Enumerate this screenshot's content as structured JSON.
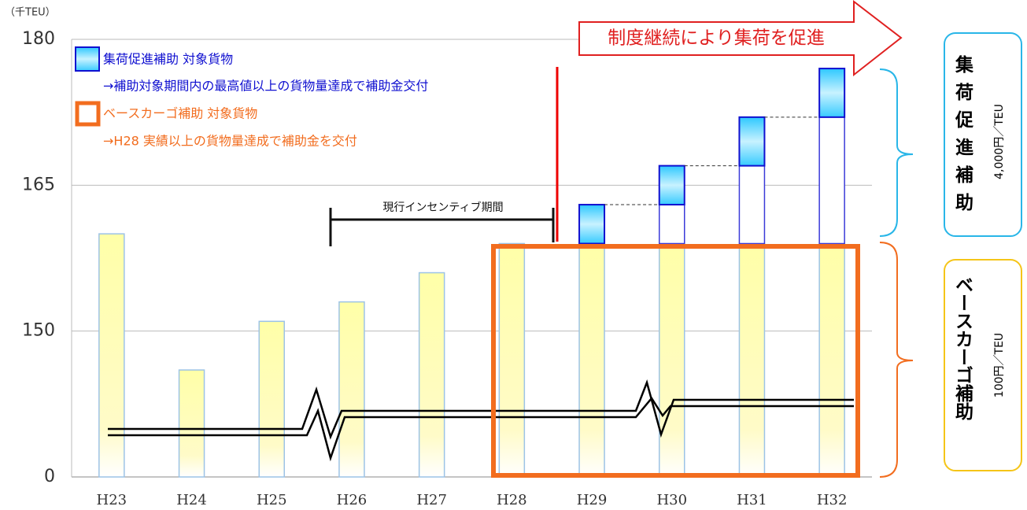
{
  "chart_data": {
    "type": "stacked_bar",
    "unit_label": "（千TEU）",
    "categories": [
      "H23",
      "H24",
      "H25",
      "H26",
      "H27",
      "H28",
      "H29",
      "H30",
      "H31",
      "H32"
    ],
    "series": [
      {
        "name": "ベースカーゴ補助 対象貨物",
        "description": "→H28 実績以上の貨物量達成で補助金を交付",
        "color": "#f26d1f",
        "values": [
          160,
          110,
          151,
          153,
          156,
          159,
          159,
          159,
          159,
          159
        ]
      },
      {
        "color": "#3a3ad8",
        "values": [
          null,
          null,
          null,
          null,
          null,
          null,
          null,
          4,
          8,
          13
        ]
      },
      {
        "name": "集荷促進補助 対象貨物",
        "description": "→補助対象期間内の最高値以上の貨物量達成で補助金交付",
        "color": "#1010d0",
        "values": [
          null,
          null,
          null,
          null,
          null,
          null,
          4,
          4,
          5,
          5
        ]
      }
    ],
    "ylim": [
      0,
      180
    ],
    "yticks": [
      0,
      150,
      165,
      180
    ],
    "grid": true,
    "annotations": {
      "arrow": "制度継続により集荷を促進",
      "period": "現行インセンティブ期間",
      "promo_box": "集荷促進補助",
      "promo_rate": "4,000円／TEU",
      "base_box": "ベースカーゴ補助",
      "base_rate": "100円／TEU"
    }
  }
}
